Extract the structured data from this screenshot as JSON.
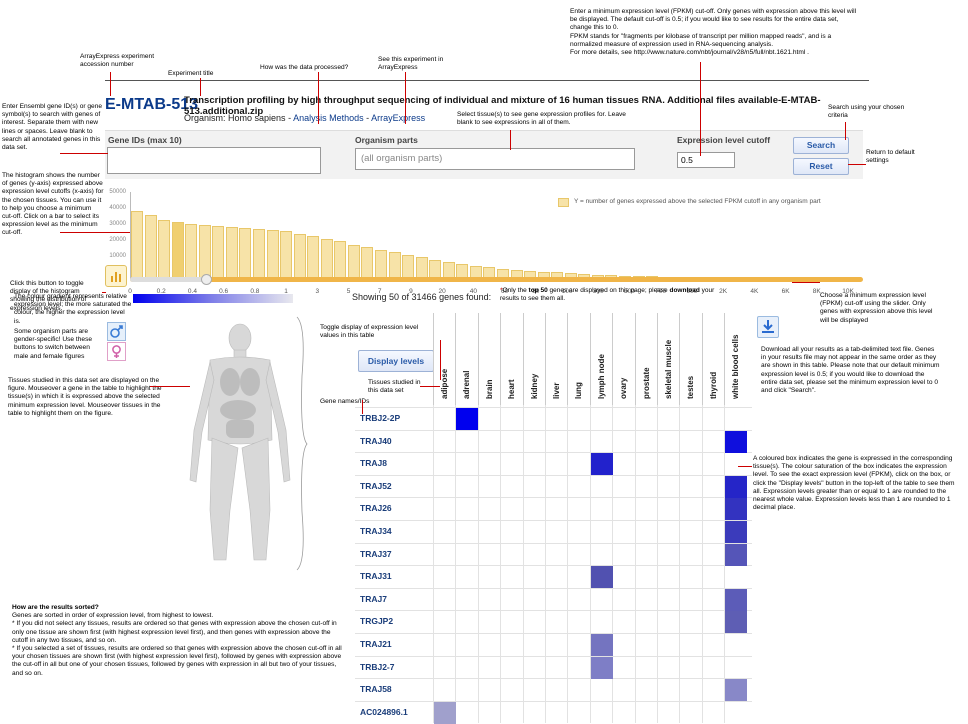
{
  "header": {
    "accession": "E-MTAB-513",
    "title": "Transcription profiling by high throughput sequencing of individual and mixture of 16 human tissues RNA. Additional files available-E-MTAB-513.additional.zip",
    "organism_label": "Organism:",
    "organism": "Homo sapiens",
    "separator": "-",
    "analysis_link": "Analysis Methods",
    "arrayexpress_link": "ArrayExpress"
  },
  "form": {
    "gene_ids_label": "Gene IDs (max 10)",
    "organism_parts_label": "Organism parts",
    "organism_parts_placeholder": "(all organism parts)",
    "cutoff_label": "Expression level cutoff",
    "cutoff_value": "0.5",
    "search_label": "Search",
    "reset_label": "Reset"
  },
  "histogram": {
    "legend": "Y = number of genes expressed above the selected FPKM cutoff in any organism part",
    "y_ticks": [
      "50000",
      "40000",
      "30000",
      "20000",
      "10000",
      "0"
    ],
    "x_ticks": [
      "0",
      "0.2",
      "0.4",
      "0.6",
      "0.8",
      "1",
      "3",
      "5",
      "7",
      "9",
      "20",
      "40",
      "60",
      "80",
      "100",
      "300",
      "500",
      "700",
      "900",
      "2K",
      "4K",
      "6K",
      "8K",
      "10K"
    ],
    "selected_index": 3
  },
  "chart_data": {
    "type": "bar",
    "values": [
      41000,
      38500,
      36000,
      34500,
      33500,
      32800,
      32000,
      31466,
      31000,
      30500,
      30000,
      29000,
      27500,
      26000,
      24500,
      23000,
      21000,
      19500,
      18000,
      16500,
      15000,
      13500,
      12000,
      10500,
      9500,
      8500,
      7500,
      6500,
      6000,
      5500,
      5000,
      4500,
      4000,
      3500,
      3200,
      2900,
      2600,
      2400,
      2200,
      2000,
      1800,
      1600,
      1450,
      1300,
      1150,
      1000,
      900,
      800,
      700,
      600,
      500,
      400,
      300,
      200
    ],
    "ylim": [
      0,
      50000
    ]
  },
  "results": {
    "showing": "Showing 50 of 31466 genes found:",
    "top50_note_pre": "Only the ",
    "top50_bold": "top 50",
    "top50_note_mid": " genes are displayed on this page; please ",
    "top50_bold2": "download",
    "top50_note_post": " your results to see them all.",
    "display_levels": "Display levels",
    "tissues": [
      "adipose",
      "adrenal",
      "brain",
      "heart",
      "kidney",
      "liver",
      "lung",
      "lymph node",
      "ovary",
      "prostate",
      "skeletal muscle",
      "testes",
      "thyroid",
      "white blood cells"
    ],
    "genes": [
      "TRBJ2-2P",
      "TRAJ40",
      "TRAJ8",
      "TRAJ52",
      "TRAJ26",
      "TRAJ34",
      "TRAJ37",
      "TRAJ31",
      "TRAJ7",
      "TRGJP2",
      "TRAJ21",
      "TRBJ2-7",
      "TRAJ58",
      "AC024896.1"
    ],
    "cells": [
      {
        "row": 0,
        "col": 1,
        "color": "#0000ee"
      },
      {
        "row": 1,
        "col": 13,
        "color": "#0f0fdd"
      },
      {
        "row": 2,
        "col": 7,
        "color": "#2222cc"
      },
      {
        "row": 3,
        "col": 13,
        "color": "#2525c8"
      },
      {
        "row": 4,
        "col": 13,
        "color": "#3333c0"
      },
      {
        "row": 5,
        "col": 13,
        "color": "#3b3bbb"
      },
      {
        "row": 6,
        "col": 13,
        "color": "#5555b8"
      },
      {
        "row": 7,
        "col": 7,
        "color": "#5151b0"
      },
      {
        "row": 8,
        "col": 13,
        "color": "#5c5cb8"
      },
      {
        "row": 9,
        "col": 13,
        "color": "#5e5eb4"
      },
      {
        "row": 10,
        "col": 7,
        "color": "#7474c0"
      },
      {
        "row": 11,
        "col": 7,
        "color": "#7e7ec6"
      },
      {
        "row": 12,
        "col": 13,
        "color": "#8888c8"
      },
      {
        "row": 13,
        "col": 0,
        "color": "#a0a0cc"
      }
    ]
  },
  "notes": {
    "accession": "ArrayExpress experiment accession number",
    "title": "Experiment title",
    "how": "How was the data processed?",
    "see": "See this experiment in ArrayExpress",
    "fpkm1": "Enter a minimum expression level (FPKM) cut-off. Only genes with expression above this level will be displayed. The default cut-off is 0.5; if you would like to see results for the entire data set, change this to 0.",
    "fpkm2": "FPKM stands for \"fragments per kilobase of transcript per million mapped reads\", and is a normalized measure of expression used in RNA-sequencing analysis.",
    "fpkm3": "For more details, see http://www.nature.com/nbt/journal/v28/n5/full/nbt.1621.html .",
    "search": "Search using your chosen criteria",
    "reset": "Return to default settings",
    "gene": "Enter Ensembl gene ID(s) or gene symbol(s) to search with genes of interest. Separate them with new lines or spaces. Leave blank to search all annotated genes in this data set.",
    "tissue": "Select tissue(s) to see gene expression profiles for. Leave blank to see expressions in all of them.",
    "hist": "The histogram shows the number of genes (y-axis) expressed above expression level cutoffs (x-axis) for the chosen tissues. You can use it to help you choose a minimum cut-off. Click on a bar to select its expression level as the minimum cut-off.",
    "toggle": "Click this button to toggle display of the histogram showing the distribution of expression levels.",
    "slider": "Choose a minimum expression level (FPKM) cut-off using the slider. Only genes with expression above this level will be displayed",
    "gradient": "The colour gradient represents relative expression level; the more saturated the colour, the higher the expression level is.",
    "gender": "Some organism parts are gender-specific! Use these buttons to switch between male and female figures",
    "tissues_fig": "Tissues studied in this data set are displayed on the figure. Mouseover a gene in the table to highlight the tissue(s) in which it is expressed above the selected minimum expression level. Mouseover tissues in the table to highlight them on the figure.",
    "toggle_levels": "Toggle display of expression level values in this table",
    "tissues_studied": "Tissues studied in this data set",
    "gene_names": "Gene names/IDs",
    "download": "Download all your results as a tab-delimited text file. Genes in your results file may not appear in the same order as they are shown in this table. Please note that our default minimum expression level is 0.5; if you would like to download the entire data set, please set the minimum expression level to 0 and click \"Search\".",
    "coloured": "A coloured box indicates the gene is expressed in the corresponding tissue(s). The colour saturation of the box indicates the expression level. To see the exact expression level (FPKM), click on the box, or click the \"Display levels\" button in the top-left of the table to see them all. Expression levels greater than or equal to 1 are rounded to the nearest whole value. Expression levels less than 1 are rounded to 1 decimal place.",
    "sorted_title": "How are the results sorted?",
    "sorted1": "Genes are sorted in order of expression level, from highest to lowest.",
    "sorted2": "* If you did not select any tissues, results are ordered so that genes with expression above the chosen cut-off in only one tissue are shown first (with highest expression level first), and then genes with expression above the cutoff in any two tissues, and so on.",
    "sorted3": "* If you selected a set of tissues, results are ordered so that genes with expression above the chosen cut-off in all your chosen tissues are shown first (with highest expression level first), followed by genes with expression above the cut-off in all but one of your chosen tissues, followed by genes with expression in all but two of your tissues, and so on."
  },
  "colors": {
    "accent": "#0b3a8a",
    "gradient_start": "#0000ee",
    "gradient_end": "#e8e8ee",
    "bar": "#f7e3a8",
    "slider": "#f0b548",
    "annotation": "#cc0000"
  }
}
